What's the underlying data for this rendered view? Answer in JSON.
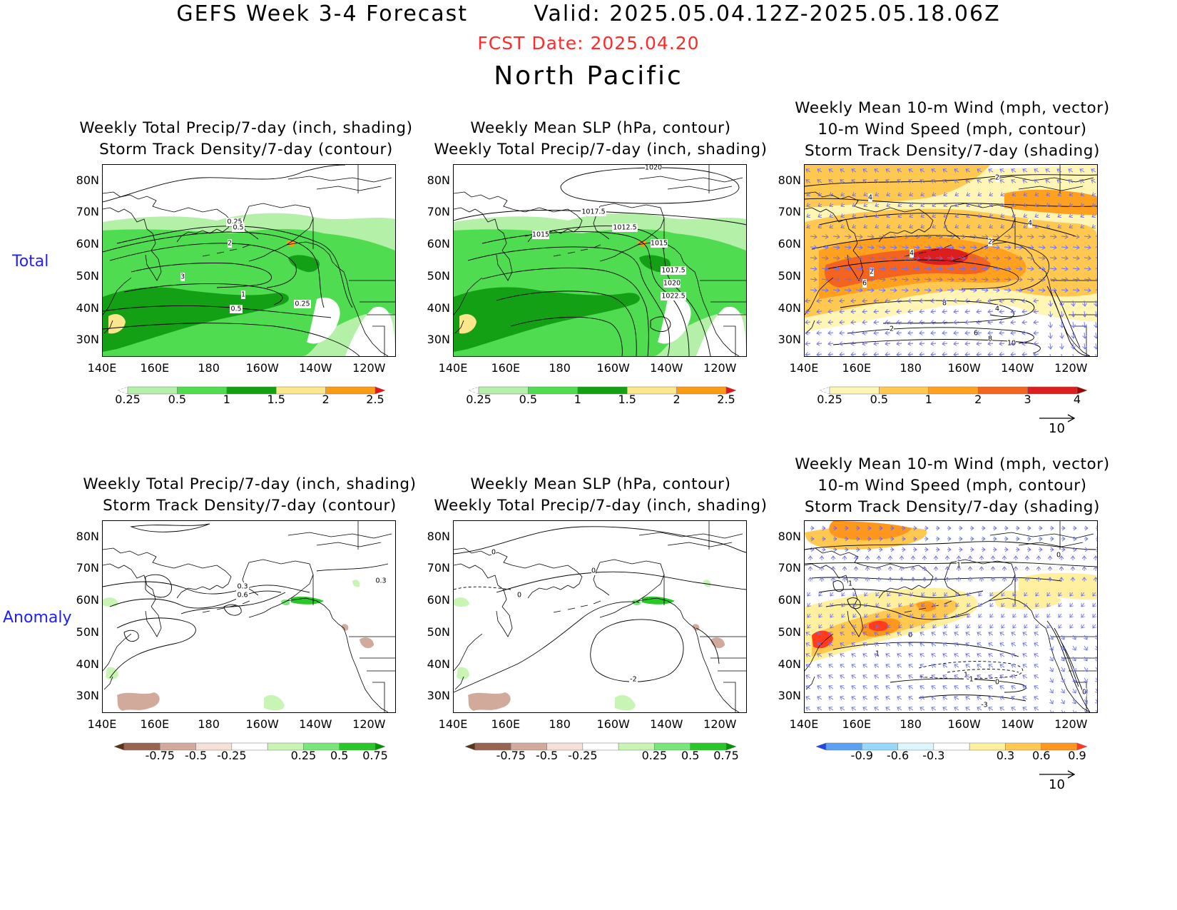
{
  "header": {
    "title": "GEFS Week 3-4 Forecast        Valid: 2025.05.04.12Z-2025.05.18.06Z",
    "fcst_date": "FCST Date: 2025.04.20",
    "region": "North Pacific"
  },
  "rows": [
    {
      "label": "Total"
    },
    {
      "label": "Anomaly"
    }
  ],
  "panel_titles": {
    "precip_storm": [
      "Weekly Total Precip/7-day (inch, shading)",
      "Storm Track Density/7-day (contour)"
    ],
    "slp_precip": [
      "Weekly Mean SLP (hPa, contour)",
      "Weekly Total Precip/7-day (inch, shading)"
    ],
    "wind_storm": [
      "Weekly Mean 10-m Wind (mph, vector)",
      "10-m Wind Speed (mph, contour)",
      "Storm Track Density/7-day (shading)"
    ]
  },
  "axes": {
    "lat_ticks": [
      "80N",
      "70N",
      "60N",
      "50N",
      "40N",
      "30N"
    ],
    "lon_ticks": [
      "140E",
      "160E",
      "180",
      "160W",
      "140W",
      "120W"
    ]
  },
  "colorbars": {
    "total_precip": {
      "labels": [
        "0.25",
        "0.5",
        "1",
        "1.5",
        "2",
        "2.5"
      ],
      "colors": [
        "#ffffff",
        "#b4f0a8",
        "#50dc50",
        "#14a014",
        "#fae68c",
        "#fa9b14",
        "#e61414"
      ]
    },
    "total_storm": {
      "labels": [
        "0.25",
        "0.5",
        "1",
        "2",
        "3",
        "4"
      ],
      "colors": [
        "#ffffff",
        "#fff5b4",
        "#ffc850",
        "#ffa01e",
        "#f5641e",
        "#dc1e1e",
        "#a00000"
      ]
    },
    "anom_precip": {
      "labels": [
        "-0.75",
        "-0.5",
        "-0.25",
        "0.25",
        "0.5",
        "0.75"
      ],
      "colors": [
        "#5a3214",
        "#966450",
        "#d2aa9b",
        "#f5e1d7",
        "#ffffff",
        "#c8f5b4",
        "#78e678",
        "#28c828",
        "#009600"
      ]
    },
    "anom_storm": {
      "labels": [
        "-0.9",
        "-0.6",
        "-0.3",
        "0.3",
        "0.6",
        "0.9"
      ],
      "colors": [
        "#1e46e6",
        "#5aa0f5",
        "#96d7fa",
        "#dcf5ff",
        "#ffffff",
        "#fff0a0",
        "#ffc850",
        "#ff961e",
        "#ff3c1e"
      ]
    }
  },
  "vector_reference": "10",
  "contour_labels": {
    "t_storm": [
      "0.25",
      "0.5",
      "2",
      "3",
      "1",
      "0.5",
      "0.25"
    ],
    "t_slp": [
      "1020",
      "1017.5",
      "1015",
      "1012.5",
      "1015",
      "1017.5",
      "1020",
      "1022.5"
    ],
    "t_wind": [
      "2",
      "4",
      "4",
      "2",
      "4",
      "2",
      "6",
      "8",
      "4",
      "2",
      "6",
      "8",
      "10",
      "4"
    ],
    "a_storm": [
      "0.3",
      "0.6",
      "0.3"
    ],
    "a_slp": [
      "0",
      "0",
      "0",
      "-2"
    ],
    "a_wind": [
      "0",
      "1",
      "1",
      "0",
      "1",
      "1",
      "0",
      "-1",
      "-3",
      "0"
    ]
  }
}
